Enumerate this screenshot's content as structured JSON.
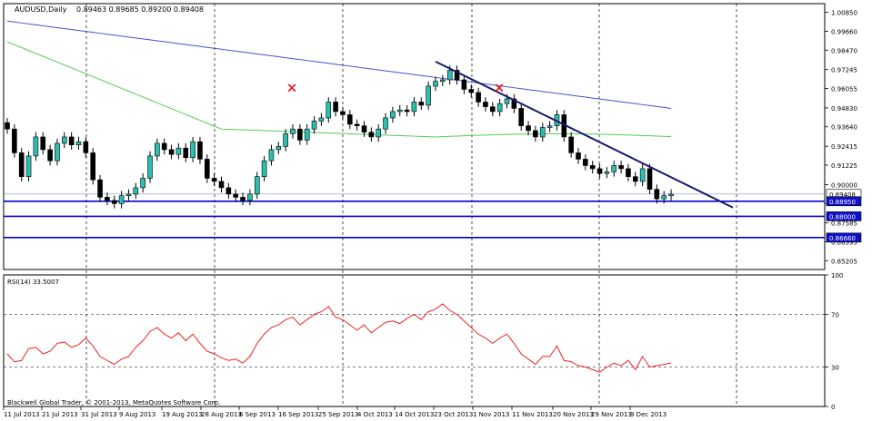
{
  "header": {
    "symbol": "AUDUSD,Daily",
    "ohlc": "0.89463 0.89685 0.89200 0.89408"
  },
  "rsi_label": "RSI(14) 33.5007",
  "footer": "Blackwell Global Trader, © 2001-2013, MetaQuotes Software Corp.",
  "colors": {
    "bull": "#2bbfae",
    "bear": "#000000",
    "ma_fast": "#55cc55",
    "ma_slow": "#4455cc",
    "trend": "#1a1a6e",
    "support": "#0000cc",
    "rsi": "#ee2222",
    "marker": "#e02020",
    "price_tag": "#ffffff",
    "support_tag": "#1010cc"
  },
  "chart_data": [
    {
      "type": "candlestick",
      "title": "AUDUSD,Daily",
      "x_tick_labels": [
        "11 Jul 2013",
        "21 Jul 2013",
        "31 Jul 2013",
        "9 Aug 2013",
        "19 Aug 2013",
        "28 Aug 2013",
        "6 Sep 2013",
        "16 Sep 2013",
        "25 Sep 2013",
        "4 Oct 2013",
        "14 Oct 2013",
        "23 Oct 2013",
        "1 Nov 2013",
        "11 Nov 2013",
        "20 Nov 2013",
        "29 Nov 2013",
        "9 Dec 2013"
      ],
      "y_tick_labels": [
        "1.00850",
        "0.99660",
        "0.98470",
        "0.97245",
        "0.96055",
        "0.94830",
        "0.93640",
        "0.92415",
        "0.91225",
        "0.90000",
        "0.88810",
        "0.87585",
        "0.86395",
        "0.85205"
      ],
      "ylim": [
        0.8465,
        1.014
      ],
      "closes": [
        0.935,
        0.92,
        0.905,
        0.918,
        0.93,
        0.922,
        0.915,
        0.926,
        0.93,
        0.925,
        0.927,
        0.92,
        0.903,
        0.892,
        0.89,
        0.888,
        0.893,
        0.894,
        0.898,
        0.904,
        0.918,
        0.926,
        0.922,
        0.919,
        0.923,
        0.917,
        0.927,
        0.916,
        0.904,
        0.902,
        0.898,
        0.894,
        0.892,
        0.89,
        0.894,
        0.905,
        0.915,
        0.922,
        0.924,
        0.932,
        0.935,
        0.928,
        0.935,
        0.94,
        0.942,
        0.952,
        0.946,
        0.944,
        0.938,
        0.937,
        0.933,
        0.93,
        0.935,
        0.942,
        0.946,
        0.947,
        0.946,
        0.952,
        0.95,
        0.962,
        0.965,
        0.966,
        0.972,
        0.966,
        0.96,
        0.958,
        0.952,
        0.949,
        0.946,
        0.951,
        0.954,
        0.948,
        0.937,
        0.934,
        0.93,
        0.936,
        0.937,
        0.944,
        0.93,
        0.92,
        0.916,
        0.912,
        0.91,
        0.907,
        0.908,
        0.912,
        0.91,
        0.905,
        0.902,
        0.91,
        0.897,
        0.891,
        0.893,
        0.894
      ],
      "opens_relation": "mixed bull/bear daily candles",
      "ma_fast_endpoints": "rises from ~0.99 (Jul) to ~0.935 (Sep), flat ~0.930 to Dec",
      "ma_slow_endpoints": "declines from ~1.003 (Jul) to ~0.948 (Dec)",
      "trendline": {
        "from": [
          0.9775,
          "22 Oct 2013"
        ],
        "to": [
          0.8855,
          "27 Dec 2013"
        ]
      },
      "horizontal_levels": [
        {
          "value": 0.8895,
          "label": "0.88950"
        },
        {
          "value": 0.88,
          "label": "0.88000"
        },
        {
          "value": 0.8666,
          "label": "0.86660"
        }
      ],
      "current_price": {
        "value": 0.89408,
        "label": "0.89408"
      },
      "markers": [
        {
          "symbol": "×",
          "date": "17 Sep 2013",
          "price": 0.961
        },
        {
          "symbol": "×",
          "date": "4 Nov 2013",
          "price": 0.961
        }
      ]
    },
    {
      "type": "line",
      "title": "RSI(14) 33.5007",
      "y_tick_labels": [
        "100",
        "70",
        "30",
        "0"
      ],
      "ylim": [
        0,
        100
      ],
      "levels": [
        70,
        30
      ],
      "values": [
        40,
        34,
        35,
        44,
        45,
        40,
        42,
        48,
        49,
        45,
        47,
        52,
        46,
        38,
        35,
        32,
        36,
        38,
        45,
        50,
        57,
        60,
        55,
        52,
        56,
        50,
        55,
        48,
        42,
        40,
        37,
        35,
        36,
        33,
        38,
        48,
        55,
        60,
        62,
        66,
        68,
        62,
        66,
        70,
        72,
        76,
        68,
        66,
        62,
        58,
        62,
        56,
        60,
        64,
        65,
        63,
        67,
        70,
        66,
        72,
        74,
        78,
        73,
        70,
        65,
        60,
        55,
        52,
        48,
        52,
        55,
        48,
        40,
        36,
        32,
        38,
        38,
        46,
        35,
        34,
        31,
        30,
        28,
        26,
        30,
        33,
        31,
        35,
        28,
        38,
        30,
        31,
        32,
        33
      ]
    }
  ]
}
